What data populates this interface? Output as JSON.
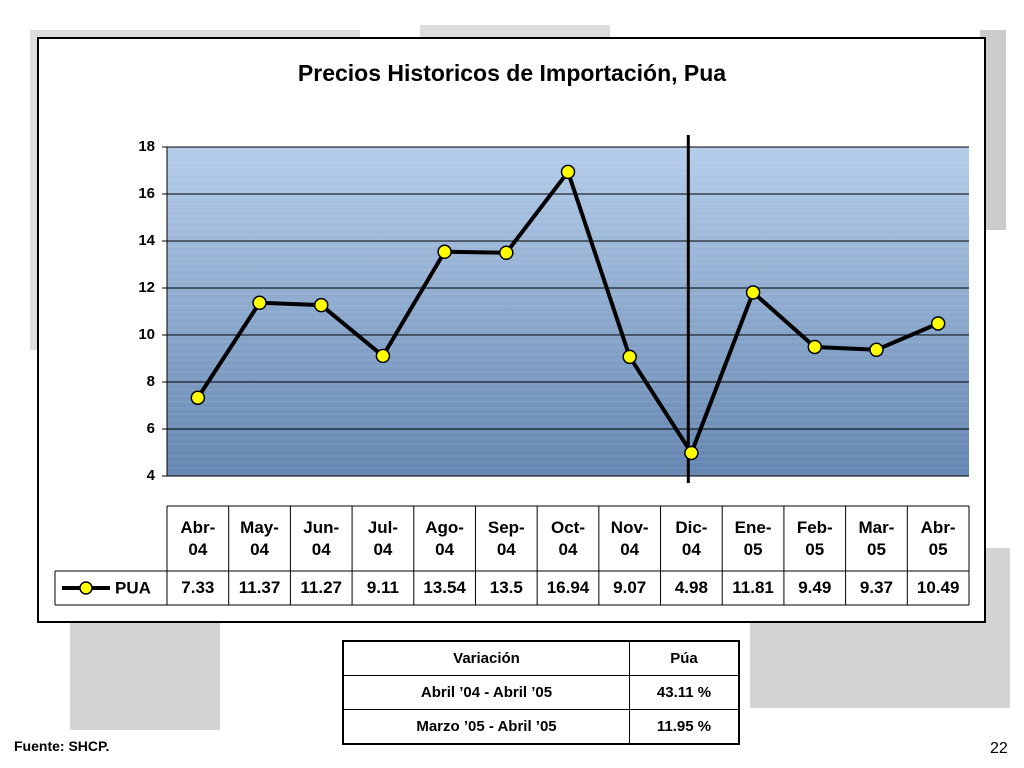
{
  "chart_data": {
    "type": "line",
    "title": "Precios Historicos de Importación, Pua",
    "categories": [
      "Abr-04",
      "May-04",
      "Jun-04",
      "Jul-04",
      "Ago-04",
      "Sep-04",
      "Oct-04",
      "Nov-04",
      "Dic-04",
      "Ene-05",
      "Feb-05",
      "Mar-05",
      "Abr-05"
    ],
    "series": [
      {
        "name": "PUA",
        "color": "#000000",
        "marker_color": "#ffff00",
        "values": [
          7.33,
          11.37,
          11.27,
          9.11,
          13.54,
          13.5,
          16.94,
          9.07,
          4.98,
          11.81,
          9.49,
          9.37,
          10.49
        ]
      }
    ],
    "ylim": [
      4,
      18
    ],
    "yticks": [
      4,
      6,
      8,
      10,
      12,
      14,
      16,
      18
    ],
    "grid": true
  },
  "variation_table": {
    "header": [
      "Variación",
      "Púa"
    ],
    "rows": [
      [
        "Abril ’04 - Abril ’05",
        "43.11 %"
      ],
      [
        "Marzo ’05 - Abril ’05",
        "11.95 %"
      ]
    ]
  },
  "footer": {
    "source": "Fuente: SHCP.",
    "page": "22"
  }
}
